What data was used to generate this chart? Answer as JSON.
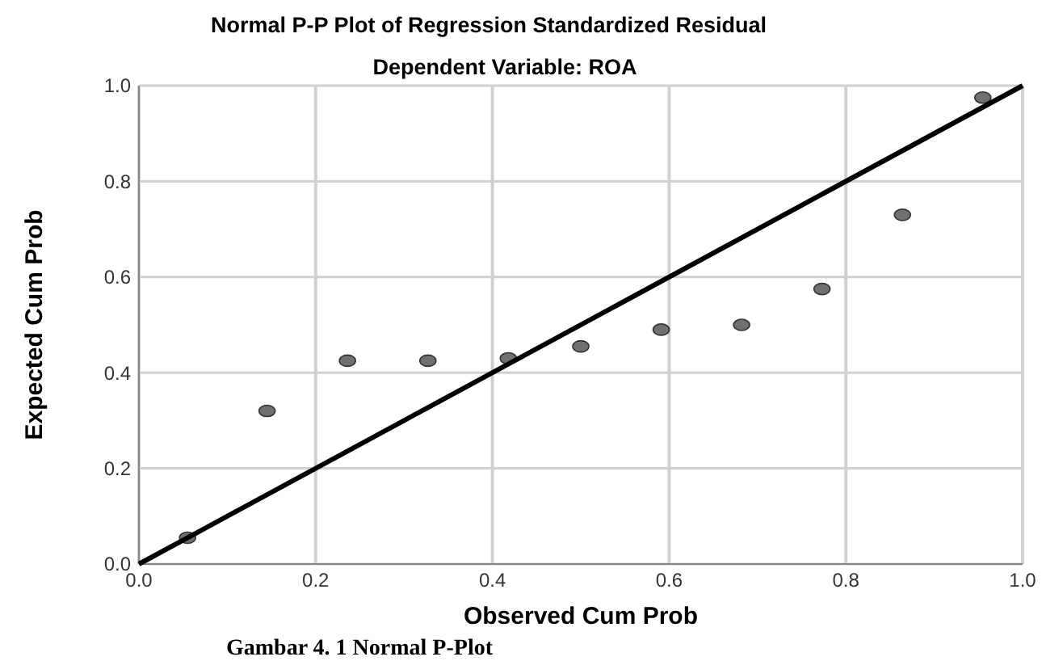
{
  "chart_data": {
    "type": "scatter",
    "title": "Normal P-P Plot of Regression Standardized Residual",
    "subtitle": "Dependent Variable: ROA",
    "xlabel": "Observed Cum Prob",
    "ylabel": "Expected Cum Prob",
    "annotations": [
      "Gambar 4. 1 Normal P-Plot"
    ],
    "xlim": [
      0,
      1
    ],
    "ylim": [
      0,
      1
    ],
    "xticks": [
      {
        "value": 0,
        "label": "0.0"
      },
      0.2,
      0.4,
      0.6,
      0.8,
      {
        "value": 1,
        "label": "1.0"
      }
    ],
    "yticks": [
      {
        "value": 0,
        "label": "0.0"
      },
      0.2,
      0.4,
      0.6,
      0.8,
      {
        "value": 1,
        "label": "1.0"
      }
    ],
    "grid": true,
    "series": [
      {
        "marker": "circle",
        "color": "#707070",
        "x": [
          0.055,
          0.145,
          0.236,
          0.327,
          0.418,
          0.5,
          0.591,
          0.682,
          0.773,
          0.864,
          0.955
        ],
        "values": [
          0.055,
          0.32,
          0.425,
          0.425,
          0.43,
          0.455,
          0.49,
          0.5,
          0.575,
          0.73,
          0.975
        ]
      },
      {
        "type": "line",
        "color": "#000000",
        "x": [
          0,
          1
        ],
        "values": [
          0,
          1
        ]
      }
    ]
  }
}
